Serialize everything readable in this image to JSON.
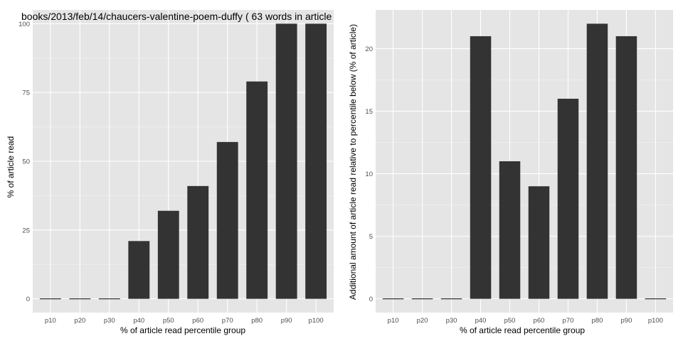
{
  "colors": {
    "panel_bg": "#e5e5e5",
    "grid_major": "#ffffff",
    "grid_minor": "#f2f2f2",
    "bar_fill": "#333333",
    "tick_text": "#4d4d4d",
    "text": "#000000",
    "page_bg": "#ffffff"
  },
  "chart_data": [
    {
      "type": "bar",
      "title": "books/2013/feb/14/chaucers-valentine-poem-duffy ( 63 words in article",
      "xlabel": "% of article read percentile group",
      "ylabel": "% of article read",
      "categories": [
        "p10",
        "p20",
        "p30",
        "p40",
        "p50",
        "p60",
        "p70",
        "p80",
        "p90",
        "p100"
      ],
      "values": [
        0,
        0,
        0,
        21,
        32,
        41,
        57,
        79,
        100,
        100
      ],
      "ylim": [
        -5,
        105
      ],
      "yticks": [
        0,
        25,
        50,
        75,
        100
      ],
      "grid": true
    },
    {
      "type": "bar",
      "title": "",
      "xlabel": "% of article read percentile group",
      "ylabel": "Additional amount of article read relative to percentile below (% of article)",
      "categories": [
        "p10",
        "p20",
        "p30",
        "p40",
        "p50",
        "p60",
        "p70",
        "p80",
        "p90",
        "p100"
      ],
      "values": [
        0,
        0,
        0,
        21,
        11,
        9,
        16,
        22,
        21,
        0
      ],
      "ylim": [
        -1.1,
        23.1
      ],
      "yticks": [
        0,
        5,
        10,
        15,
        20
      ],
      "grid": true
    }
  ]
}
